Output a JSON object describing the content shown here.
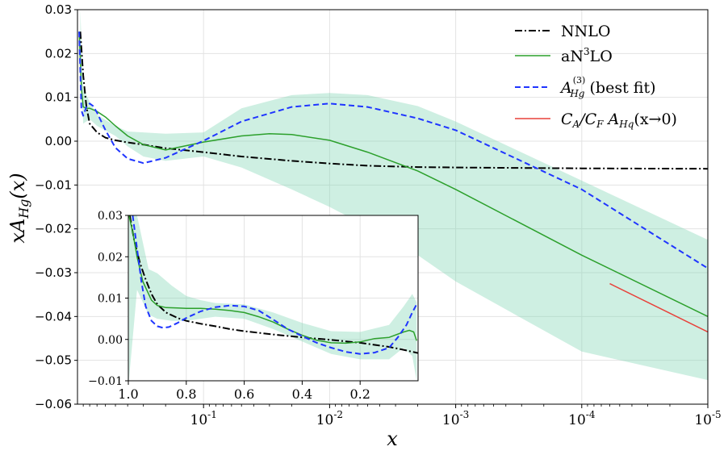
{
  "chart_data": [
    {
      "type": "line",
      "xscale": "log-reversed",
      "xlabel": "x",
      "ylabel": "xA_Hg(x)",
      "ylabel_parts": [
        "xA",
        "Hg",
        "(x)"
      ],
      "xlim": [
        1.0,
        1e-05
      ],
      "ylim": [
        -0.06,
        0.03
      ],
      "ytick_labels": [
        "0.03",
        "0.02",
        "0.01",
        "0.00",
        "−0.01",
        "−0.02",
        "−0.03",
        "−0.04",
        "−0.05",
        "−0.06"
      ],
      "ytick_values": [
        0.03,
        0.02,
        0.01,
        0.0,
        -0.01,
        -0.02,
        -0.03,
        -0.04,
        -0.05,
        -0.06
      ],
      "xtick_values": [
        0.1,
        0.01,
        0.001,
        0.0001,
        1e-05
      ],
      "xtick_labels": [
        {
          "base": "10",
          "exp": "-1"
        },
        {
          "base": "10",
          "exp": "-2"
        },
        {
          "base": "10",
          "exp": "-3"
        },
        {
          "base": "10",
          "exp": "-4"
        },
        {
          "base": "10",
          "exp": "-5"
        }
      ],
      "grid": true,
      "legend_position": "top-right",
      "legend": [
        {
          "key": "nnlo",
          "text": "NNLO",
          "color": "#000000",
          "style": "dashdot"
        },
        {
          "key": "an3lo",
          "text": "aN",
          "sup": "3",
          "tail": "LO",
          "color": "#2ca02c",
          "style": "solid"
        },
        {
          "key": "bestfit",
          "text": "A",
          "sup": "(3)",
          "sub": "Hg",
          "tail": " (best fit)",
          "color": "#1f35ff",
          "style": "dashed"
        },
        {
          "key": "smallx",
          "text": "C",
          "sub": "A",
          "mid": "/C",
          "sub2": "F",
          "mid2": " A",
          "sub3": "Hq",
          "tail": "(x→0)",
          "color": "#e8413a",
          "style": "solid"
        }
      ],
      "series": [
        {
          "name": "NNLO",
          "color": "#000000",
          "x": [
            0.95,
            0.9,
            0.85,
            0.8,
            0.7,
            0.6,
            0.5,
            0.4,
            0.3,
            0.2,
            0.1,
            0.05,
            0.02,
            0.01,
            0.005,
            0.002,
            0.001,
            0.0001,
            1e-05
          ],
          "y": [
            0.025,
            0.015,
            0.008,
            0.004,
            0.002,
            0.0008,
            0.0002,
            -0.0003,
            -0.0008,
            -0.0016,
            -0.0025,
            -0.0035,
            -0.0045,
            -0.0051,
            -0.0056,
            -0.0059,
            -0.006,
            -0.0062,
            -0.0063
          ]
        },
        {
          "name": "aN3LO",
          "color": "#2ca02c",
          "x": [
            0.97,
            0.93,
            0.9,
            0.85,
            0.8,
            0.7,
            0.6,
            0.5,
            0.4,
            0.3,
            0.2,
            0.1,
            0.05,
            0.03,
            0.02,
            0.01,
            0.005,
            0.002,
            0.001,
            0.0001,
            1e-05
          ],
          "y": [
            0.025,
            0.012,
            0.0078,
            0.0075,
            0.0075,
            0.0068,
            0.0055,
            0.0035,
            0.0012,
            -0.0008,
            -0.002,
            -0.0002,
            0.0012,
            0.0017,
            0.0015,
            0.0002,
            -0.0025,
            -0.0068,
            -0.011,
            -0.026,
            -0.04
          ]
        },
        {
          "name": "A_Hg^(3) (best fit)",
          "color": "#1f35ff",
          "x": [
            0.97,
            0.93,
            0.9,
            0.85,
            0.8,
            0.75,
            0.7,
            0.6,
            0.5,
            0.4,
            0.3,
            0.2,
            0.1,
            0.05,
            0.02,
            0.01,
            0.005,
            0.002,
            0.001,
            0.0001,
            1e-05
          ],
          "y": [
            0.025,
            0.007,
            0.0058,
            0.0078,
            0.0086,
            0.008,
            0.0065,
            0.0025,
            -0.0015,
            -0.004,
            -0.005,
            -0.0038,
            0.0001,
            0.0045,
            0.0078,
            0.0086,
            0.0078,
            0.0052,
            0.0025,
            -0.011,
            -0.029
          ]
        },
        {
          "name": "C_A/C_F A_Hq(x->0)",
          "color": "#e8413a",
          "x": [
            6e-05,
            1e-05
          ],
          "y": [
            -0.0325,
            -0.0435
          ]
        }
      ],
      "band": {
        "name": "aN3LO uncertainty",
        "color": "#7fd4b2",
        "x": [
          0.95,
          0.9,
          0.8,
          0.7,
          0.5,
          0.4,
          0.3,
          0.2,
          0.1,
          0.05,
          0.02,
          0.01,
          0.005,
          0.002,
          0.001,
          0.0001,
          1e-05
        ],
        "upper": [
          0.03,
          0.012,
          0.009,
          0.006,
          0.0035,
          0.0022,
          0.002,
          0.0017,
          0.002,
          0.0075,
          0.0105,
          0.011,
          0.0105,
          0.008,
          0.0045,
          -0.009,
          -0.0225
        ],
        "lower": [
          0.02,
          0.004,
          0.005,
          0.0035,
          0.0012,
          -0.0012,
          -0.0035,
          -0.0045,
          -0.0035,
          -0.006,
          -0.011,
          -0.015,
          -0.0195,
          -0.026,
          -0.032,
          -0.048,
          -0.0545
        ]
      }
    },
    {
      "type": "line",
      "role": "inset",
      "xscale": "linear-reversed",
      "xlim": [
        1.0,
        0.0
      ],
      "ylim": [
        -0.01,
        0.03
      ],
      "xtick_labels": [
        "1.0",
        "0.8",
        "0.6",
        "0.4",
        "0.2"
      ],
      "xtick_values": [
        1.0,
        0.8,
        0.6,
        0.4,
        0.2
      ],
      "ytick_labels": [
        "−0.01",
        "0.00",
        "0.01",
        "0.02",
        "0.03"
      ],
      "ytick_values": [
        -0.01,
        0.0,
        0.01,
        0.02,
        0.03
      ],
      "grid": true,
      "series": [
        {
          "name": "NNLO",
          "color": "#000000",
          "x": [
            0.995,
            0.98,
            0.96,
            0.94,
            0.92,
            0.9,
            0.87,
            0.83,
            0.8,
            0.75,
            0.7,
            0.65,
            0.6,
            0.5,
            0.4,
            0.3,
            0.2,
            0.1,
            0.05,
            0.0
          ],
          "y": [
            0.03,
            0.024,
            0.0185,
            0.0145,
            0.011,
            0.0085,
            0.0065,
            0.0052,
            0.0045,
            0.0038,
            0.0032,
            0.0025,
            0.002,
            0.0012,
            0.0005,
            -0.0001,
            -0.0008,
            -0.0018,
            -0.0025,
            -0.0033
          ]
        },
        {
          "name": "aN3LO",
          "color": "#2ca02c",
          "x": [
            0.998,
            0.985,
            0.97,
            0.95,
            0.92,
            0.9,
            0.87,
            0.83,
            0.8,
            0.75,
            0.7,
            0.65,
            0.6,
            0.55,
            0.5,
            0.45,
            0.4,
            0.35,
            0.3,
            0.25,
            0.2,
            0.15,
            0.1,
            0.05,
            0.03,
            0.015,
            0.005
          ],
          "y": [
            0.03,
            0.026,
            0.02,
            0.014,
            0.0095,
            0.0082,
            0.0077,
            0.0076,
            0.0075,
            0.0075,
            0.0073,
            0.007,
            0.0065,
            0.0055,
            0.0042,
            0.0025,
            0.001,
            -0.0002,
            -0.0008,
            -0.0009,
            -0.0006,
            0.0002,
            0.0005,
            0.0018,
            0.0022,
            0.0018,
            -0.0003
          ]
        },
        {
          "name": "A_Hg^(3) (best fit)",
          "color": "#1f35ff",
          "x": [
            0.985,
            0.97,
            0.955,
            0.94,
            0.92,
            0.9,
            0.88,
            0.86,
            0.83,
            0.8,
            0.75,
            0.7,
            0.65,
            0.6,
            0.55,
            0.5,
            0.45,
            0.4,
            0.35,
            0.3,
            0.25,
            0.2,
            0.15,
            0.1,
            0.07,
            0.04,
            0.02,
            0.005
          ],
          "y": [
            0.03,
            0.022,
            0.014,
            0.008,
            0.0045,
            0.0032,
            0.0028,
            0.003,
            0.004,
            0.0052,
            0.0068,
            0.0078,
            0.0082,
            0.008,
            0.007,
            0.0048,
            0.0025,
            0.0008,
            -0.0008,
            -0.002,
            -0.003,
            -0.0035,
            -0.0032,
            -0.002,
            0.0005,
            0.0035,
            0.0065,
            0.0085
          ]
        }
      ],
      "band": {
        "name": "aN3LO uncertainty",
        "color": "#7fd4b2",
        "x": [
          0.998,
          0.97,
          0.93,
          0.9,
          0.85,
          0.8,
          0.75,
          0.7,
          0.6,
          0.5,
          0.4,
          0.3,
          0.2,
          0.1,
          0.05,
          0.02,
          0.005
        ],
        "upper": [
          0.03,
          0.03,
          0.017,
          0.016,
          0.013,
          0.0105,
          0.0095,
          0.0088,
          0.0085,
          0.0065,
          0.004,
          0.002,
          0.0018,
          0.0035,
          0.008,
          0.011,
          0.009
        ],
        "lower": [
          -0.01,
          0.012,
          0.006,
          0.005,
          0.0045,
          0.0045,
          0.005,
          0.0055,
          0.005,
          0.0025,
          -0.0005,
          -0.0035,
          -0.0048,
          -0.0048,
          -0.002,
          -0.004,
          -0.01
        ]
      }
    }
  ]
}
